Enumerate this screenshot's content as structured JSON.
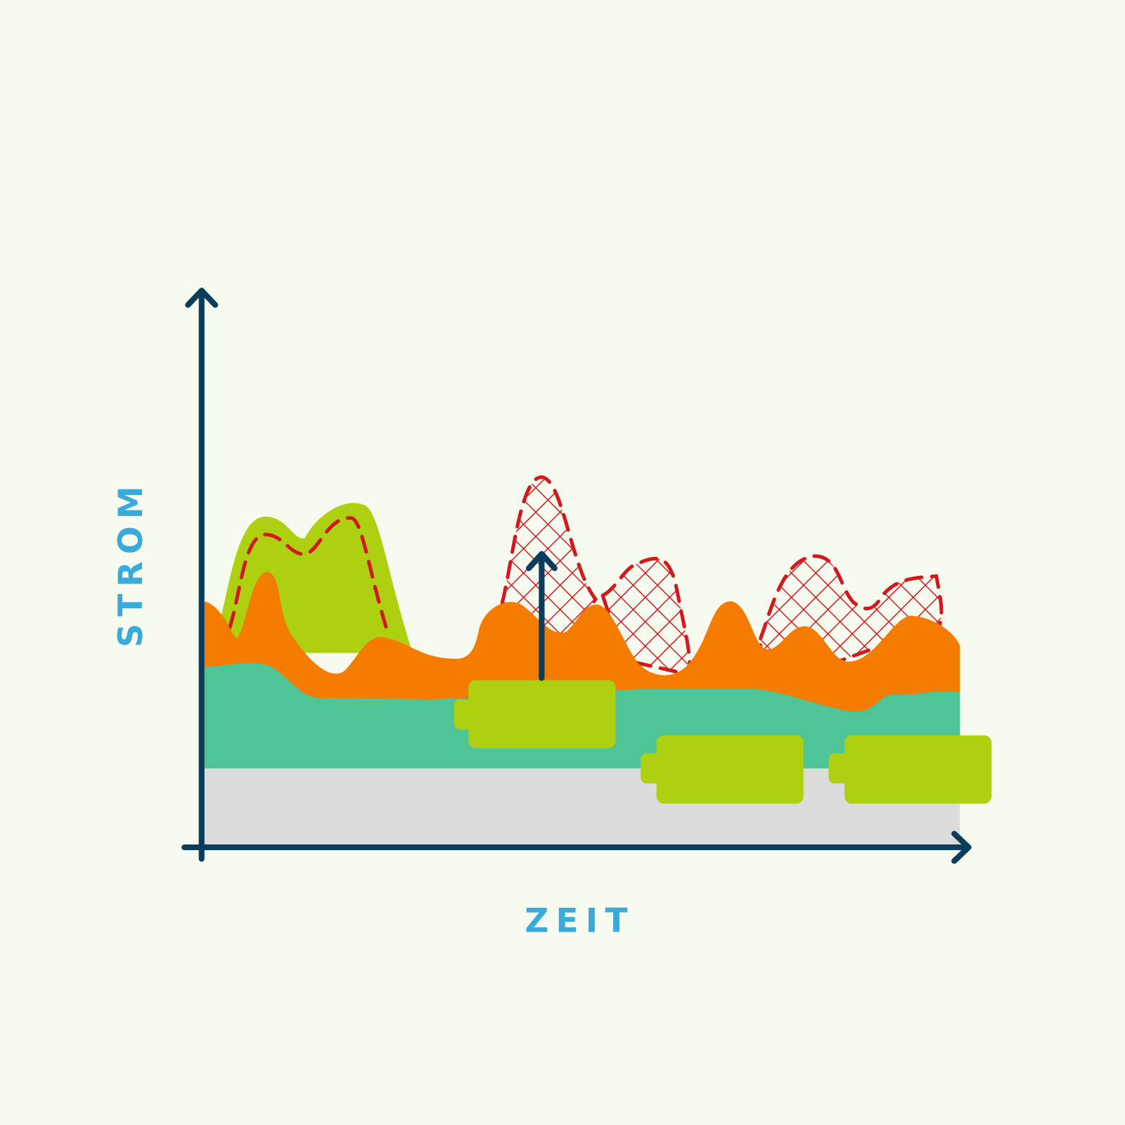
{
  "axes": {
    "y_label": "STROM",
    "x_label": "ZEIT"
  }
}
